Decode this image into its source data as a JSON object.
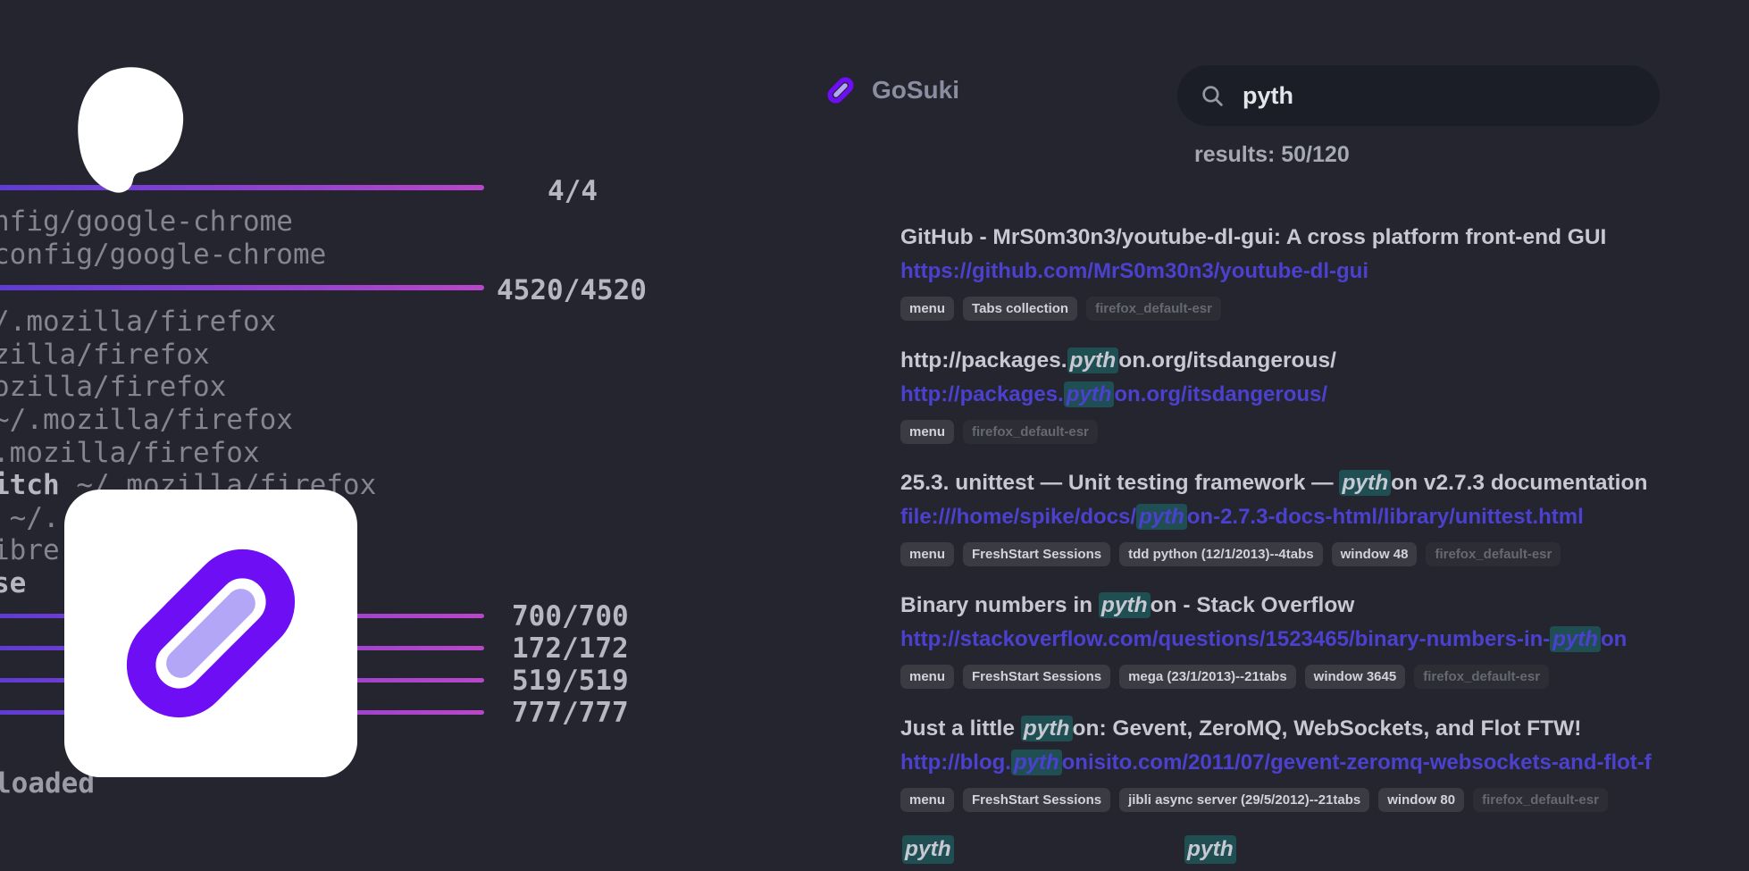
{
  "theme": {
    "background": "#24252f",
    "search_pill_bg": "#1b1d27",
    "terminal_text": "#84858e",
    "terminal_bright": "#b6b7c0",
    "bar_gradient_start": "#5b3bd6",
    "bar_gradient_end": "#b946c9",
    "logo_purple": "#6d0ef5",
    "logo_lavender": "#b3a6f7",
    "title_color": "#c7c8d2",
    "url_color": "#4c40ce",
    "highlight_bg": "#1f4f53",
    "tag_bg": "#3a3b43",
    "tag_dim_text": "#666872"
  },
  "icons": {
    "app_logo": "link-icon",
    "search": "search-icon",
    "corner_logo": "gosuki-blob-logo"
  },
  "header": {
    "app_name": "GoSuki"
  },
  "search": {
    "value": "pyth",
    "results_label": "results: 50/120"
  },
  "terminal": {
    "progress": [
      "4/4",
      "4520/4520",
      "700/700",
      "172/172",
      "519/519",
      "777/777"
    ],
    "lines": [
      {
        "bold": "",
        "text": "nfig/google-chrome"
      },
      {
        "bold": "",
        "text": "config/google-chrome"
      },
      {
        "bold": "",
        "text": "/.mozilla/firefox"
      },
      {
        "bold": "",
        "text": "zilla/firefox"
      },
      {
        "bold": "",
        "text": "ozilla/firefox"
      },
      {
        "bold": "",
        "text": "~/.mozilla/firefox"
      },
      {
        "bold": "",
        "text": ".mozilla/firefox"
      },
      {
        "bold": "itch",
        "text": " ~/.mozilla/firefox"
      },
      {
        "bold": "",
        "text": " ~/."
      },
      {
        "bold": "",
        "text": "ibre"
      },
      {
        "bold": "se",
        "text": ""
      }
    ],
    "footer": "loaded"
  },
  "results": [
    {
      "title": [
        {
          "t": "GitHub - MrS0m30n3/youtube-dl-gui: A cross platform front-end GUI"
        }
      ],
      "url": [
        {
          "t": "https://github.com/MrS0m30n3/youtube-dl-gui"
        }
      ],
      "tags": [
        {
          "label": "menu"
        },
        {
          "label": "Tabs collection"
        },
        {
          "label": "firefox_default-esr",
          "dim": true
        }
      ]
    },
    {
      "title": [
        {
          "t": "http://packages."
        },
        {
          "t": "pyth",
          "hl": true
        },
        {
          "t": "on.org/itsdangerous/"
        }
      ],
      "url": [
        {
          "t": "http://packages."
        },
        {
          "t": "pyth",
          "hl": true
        },
        {
          "t": "on.org/itsdangerous/"
        }
      ],
      "tags": [
        {
          "label": "menu"
        },
        {
          "label": "firefox_default-esr",
          "dim": true
        }
      ]
    },
    {
      "title": [
        {
          "t": "25.3. unittest — Unit testing framework — "
        },
        {
          "t": "pyth",
          "hl": true
        },
        {
          "t": "on v2.7.3 documentation"
        }
      ],
      "url": [
        {
          "t": "file:///home/spike/docs/"
        },
        {
          "t": "pyth",
          "hl": true
        },
        {
          "t": "on-2.7.3-docs-html/library/unittest.html"
        }
      ],
      "tags": [
        {
          "label": "menu"
        },
        {
          "label": "FreshStart Sessions"
        },
        {
          "label": "tdd python (12/1/2013)--4tabs"
        },
        {
          "label": "window 48"
        },
        {
          "label": "firefox_default-esr",
          "dim": true
        }
      ]
    },
    {
      "title": [
        {
          "t": "Binary numbers in "
        },
        {
          "t": "pyth",
          "hl": true
        },
        {
          "t": "on - Stack Overflow"
        }
      ],
      "url": [
        {
          "t": "http://stackoverflow.com/questions/1523465/binary-numbers-in-"
        },
        {
          "t": "pyth",
          "hl": true
        },
        {
          "t": "on"
        }
      ],
      "tags": [
        {
          "label": "menu"
        },
        {
          "label": "FreshStart Sessions"
        },
        {
          "label": "mega (23/1/2013)--21tabs"
        },
        {
          "label": "window 3645"
        },
        {
          "label": "firefox_default-esr",
          "dim": true
        }
      ]
    },
    {
      "title": [
        {
          "t": "Just a little "
        },
        {
          "t": "pyth",
          "hl": true
        },
        {
          "t": "on: Gevent, ZeroMQ, WebSockets, and Flot FTW!"
        }
      ],
      "url": [
        {
          "t": "http://blog."
        },
        {
          "t": "pyth",
          "hl": true
        },
        {
          "t": "onisito.com/2011/07/gevent-zeromq-websockets-and-flot-f"
        }
      ],
      "tags": [
        {
          "label": "menu"
        },
        {
          "label": "FreshStart Sessions"
        },
        {
          "label": "jibli async server (29/5/2012)--21tabs"
        },
        {
          "label": "window 80"
        },
        {
          "label": "firefox_default-esr",
          "dim": true
        }
      ]
    }
  ],
  "partial_next_result": {
    "highlight_chips": [
      "pyth",
      "pyth"
    ]
  }
}
